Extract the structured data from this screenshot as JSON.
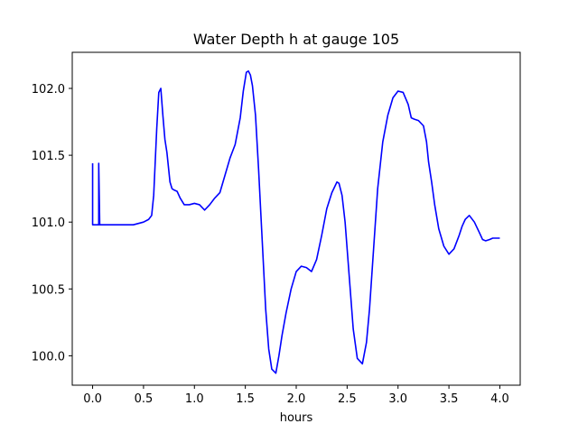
{
  "chart_data": {
    "type": "line",
    "title": "Water Depth h at gauge 105",
    "xlabel": "hours",
    "ylabel": "",
    "xlim": [
      -0.2,
      4.2
    ],
    "ylim": [
      99.78,
      102.27
    ],
    "xticks": [
      0.0,
      0.5,
      1.0,
      1.5,
      2.0,
      2.5,
      3.0,
      3.5,
      4.0
    ],
    "xtick_labels": [
      "0.0",
      "0.5",
      "1.0",
      "1.5",
      "2.0",
      "2.5",
      "3.0",
      "3.5",
      "4.0"
    ],
    "yticks": [
      100.0,
      100.5,
      101.0,
      101.5,
      102.0
    ],
    "ytick_labels": [
      "100.0",
      "100.5",
      "101.0",
      "101.5",
      "102.0"
    ],
    "grid": false,
    "series": [
      {
        "color": "#0000ff",
        "x": [
          0.0,
          0.0,
          0.02,
          0.04,
          0.05,
          0.06,
          0.06,
          0.07,
          0.1,
          0.2,
          0.3,
          0.4,
          0.45,
          0.5,
          0.55,
          0.58,
          0.6,
          0.63,
          0.65,
          0.67,
          0.69,
          0.71,
          0.73,
          0.76,
          0.78,
          0.8,
          0.83,
          0.86,
          0.9,
          0.95,
          1.0,
          1.05,
          1.1,
          1.15,
          1.2,
          1.25,
          1.3,
          1.35,
          1.4,
          1.45,
          1.48,
          1.51,
          1.53,
          1.55,
          1.57,
          1.6,
          1.63,
          1.66,
          1.7,
          1.73,
          1.76,
          1.8,
          1.83,
          1.86,
          1.9,
          1.95,
          2.0,
          2.05,
          2.1,
          2.15,
          2.2,
          2.25,
          2.3,
          2.35,
          2.4,
          2.42,
          2.45,
          2.48,
          2.52,
          2.56,
          2.6,
          2.65,
          2.69,
          2.72,
          2.76,
          2.8,
          2.85,
          2.9,
          2.95,
          3.0,
          3.05,
          3.1,
          3.13,
          3.16,
          3.2,
          3.25,
          3.28,
          3.3,
          3.33,
          3.36,
          3.4,
          3.45,
          3.5,
          3.55,
          3.6,
          3.63,
          3.66,
          3.7,
          3.75,
          3.8,
          3.83,
          3.86,
          3.9,
          3.93,
          3.96,
          4.0
        ],
        "y": [
          101.44,
          100.98,
          100.98,
          100.98,
          100.98,
          100.98,
          101.44,
          100.98,
          100.98,
          100.98,
          100.98,
          100.98,
          100.99,
          101.0,
          101.02,
          101.05,
          101.2,
          101.7,
          101.97,
          102.0,
          101.8,
          101.62,
          101.52,
          101.3,
          101.25,
          101.24,
          101.23,
          101.18,
          101.13,
          101.13,
          101.14,
          101.13,
          101.09,
          101.13,
          101.18,
          101.22,
          101.35,
          101.48,
          101.58,
          101.78,
          101.98,
          102.12,
          102.13,
          102.1,
          102.02,
          101.8,
          101.4,
          100.95,
          100.35,
          100.05,
          99.9,
          99.87,
          100.0,
          100.15,
          100.32,
          100.5,
          100.63,
          100.67,
          100.66,
          100.63,
          100.72,
          100.9,
          101.1,
          101.22,
          101.3,
          101.29,
          101.2,
          101.0,
          100.6,
          100.2,
          99.98,
          99.94,
          100.1,
          100.35,
          100.8,
          101.25,
          101.6,
          101.8,
          101.93,
          101.98,
          101.97,
          101.88,
          101.78,
          101.77,
          101.76,
          101.72,
          101.6,
          101.45,
          101.3,
          101.13,
          100.95,
          100.82,
          100.76,
          100.8,
          100.9,
          100.97,
          101.02,
          101.05,
          101.0,
          100.92,
          100.87,
          100.86,
          100.87,
          100.88,
          100.88,
          100.88
        ]
      }
    ]
  }
}
